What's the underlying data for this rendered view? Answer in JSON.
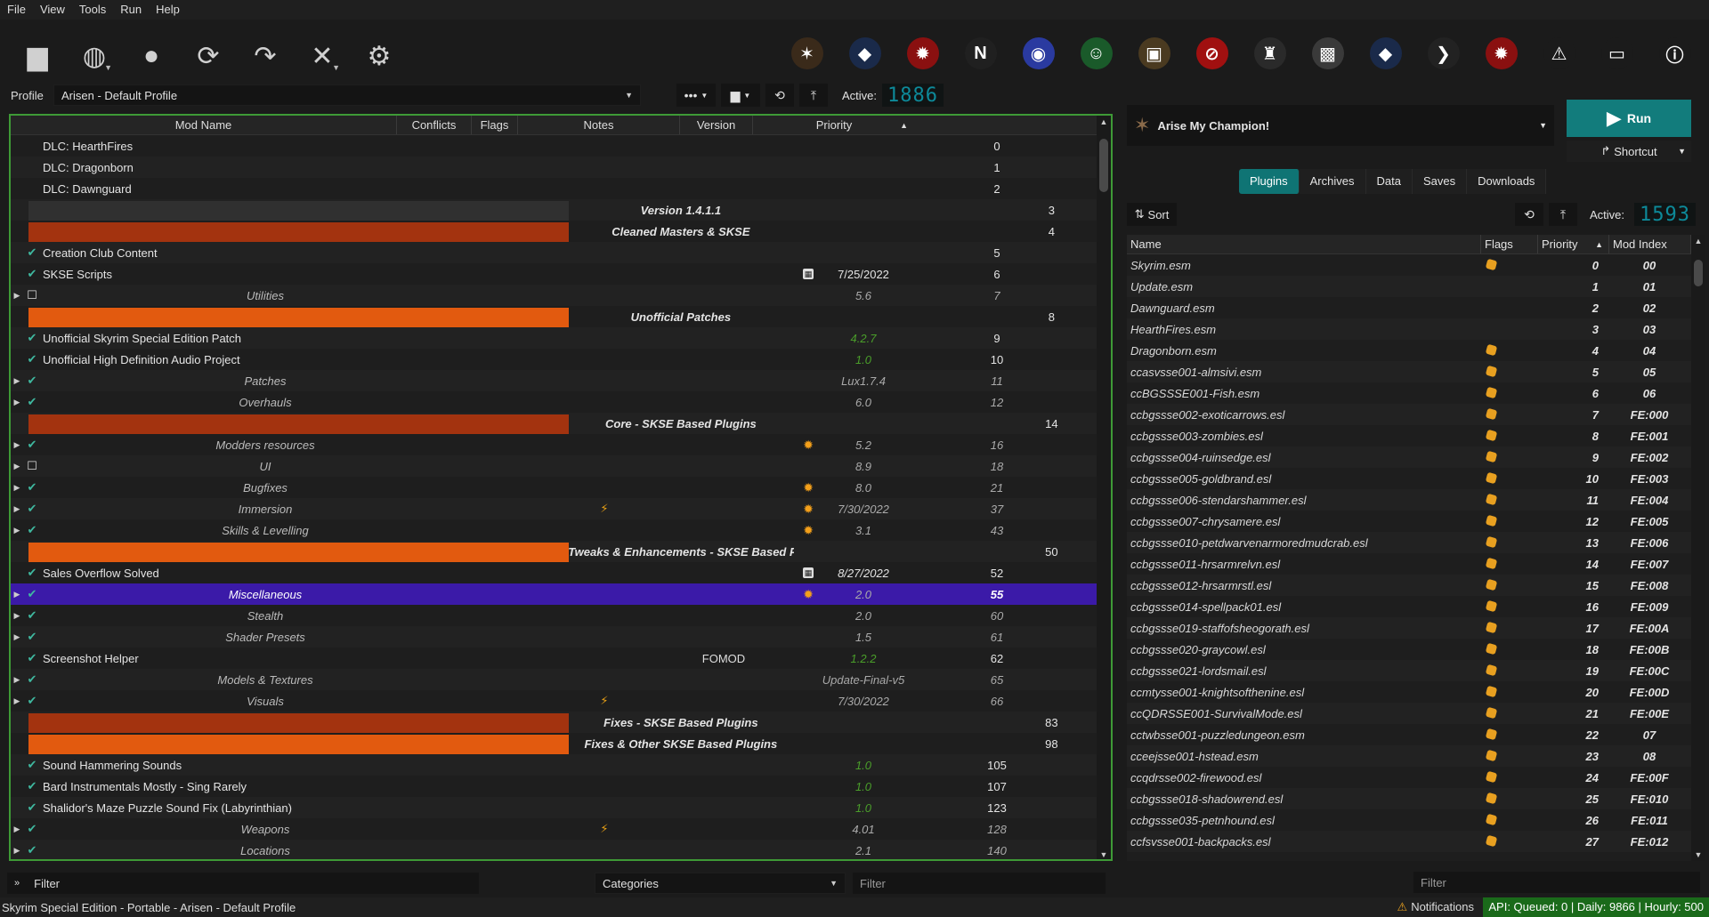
{
  "menu": [
    "File",
    "View",
    "Tools",
    "Run",
    "Help"
  ],
  "toolbar": {
    "left": [
      {
        "icon": "folder-icon",
        "glyph": "▆"
      },
      {
        "icon": "globe-icon",
        "glyph": "◍",
        "caret": true
      },
      {
        "icon": "profile-icon",
        "glyph": "●"
      },
      {
        "icon": "refresh-icon",
        "glyph": "⟳"
      },
      {
        "icon": "redo-icon",
        "glyph": "↷"
      },
      {
        "icon": "tools-icon",
        "glyph": "✕",
        "caret": true
      },
      {
        "icon": "settings-icon",
        "glyph": "⚙"
      }
    ],
    "executables": [
      {
        "icon": "skyrim-exe-icon",
        "color": "#3a2a1a",
        "glyph": "✶"
      },
      {
        "icon": "crystal-exe-icon",
        "color": "#1a2a4a",
        "glyph": "◆"
      },
      {
        "icon": "red-mask-exe-icon",
        "color": "#8a1010",
        "glyph": "✹"
      },
      {
        "icon": "nemesis-exe-icon",
        "color": "#202020",
        "glyph": "N"
      },
      {
        "icon": "blue-orb-exe-icon",
        "color": "#2a3aa0",
        "glyph": "◉"
      },
      {
        "icon": "green-face-exe-icon",
        "color": "#1a5a2a",
        "glyph": "☺"
      },
      {
        "icon": "archive-exe-icon",
        "color": "#4a3a20",
        "glyph": "▣"
      },
      {
        "icon": "red-slash-exe-icon",
        "color": "#a01010",
        "glyph": "⊘"
      },
      {
        "icon": "castle-exe-icon",
        "color": "#2a2a2a",
        "glyph": "♜"
      },
      {
        "icon": "cube-exe-icon",
        "color": "#3a3a3a",
        "glyph": "▩"
      },
      {
        "icon": "crystal2-exe-icon",
        "color": "#1a2a4a",
        "glyph": "◆"
      },
      {
        "icon": "claw-exe-icon",
        "color": "#222",
        "glyph": "❯"
      },
      {
        "icon": "red-skull-exe-icon",
        "color": "#8a1010",
        "glyph": "✹"
      },
      {
        "icon": "warning-icon",
        "color": "#1b1b1b",
        "glyph": "⚠"
      },
      {
        "icon": "tag-icon",
        "color": "#1b1b1b",
        "glyph": "▭"
      },
      {
        "icon": "info-icon",
        "color": "#1b1b1b",
        "glyph": "ⓘ"
      }
    ]
  },
  "profile": {
    "label": "Profile",
    "value": "Arisen - Default Profile",
    "active_label": "Active:",
    "active_count": "1886"
  },
  "modlist": {
    "columns": [
      "Mod Name",
      "Conflicts",
      "Flags",
      "Notes",
      "Version",
      "Priority"
    ],
    "rows": [
      {
        "t": "mod",
        "chk": "",
        "name": "DLC: HearthFires",
        "pri": "0"
      },
      {
        "t": "mod",
        "chk": "",
        "name": "DLC: Dragonborn",
        "pri": "1"
      },
      {
        "t": "mod",
        "chk": "",
        "name": "DLC: Dawnguard",
        "pri": "2"
      },
      {
        "t": "sep",
        "style": "sepgray",
        "name": "Version 1.4.1.1",
        "pri": "3"
      },
      {
        "t": "sep",
        "style": "sepred",
        "name": "Cleaned Masters & SKSE",
        "pri": "4"
      },
      {
        "t": "mod",
        "chk": "✔",
        "name": "Creation Club Content",
        "pri": "5"
      },
      {
        "t": "mod",
        "chk": "✔",
        "name": "SKSE Scripts",
        "noteicon": true,
        "ver": "7/25/2022",
        "pri": "6"
      },
      {
        "t": "grp",
        "exp": "▶",
        "chk": "☐",
        "name": "Utilities",
        "ver": "5.6",
        "pri": "7"
      },
      {
        "t": "sep",
        "style": "sepora",
        "name": "Unofficial Patches",
        "pri": "8"
      },
      {
        "t": "mod",
        "chk": "✔",
        "name": "Unofficial Skyrim Special Edition Patch",
        "ver": "4.2.7",
        "vgreen": true,
        "pri": "9"
      },
      {
        "t": "mod",
        "chk": "✔",
        "name": "Unofficial High Definition Audio Project",
        "ver": "1.0",
        "vgreen": true,
        "pri": "10"
      },
      {
        "t": "grp",
        "exp": "▶",
        "chk": "✔",
        "name": "Patches",
        "ver": "Lux1.7.4",
        "pri": "11"
      },
      {
        "t": "grp",
        "exp": "▶",
        "chk": "✔",
        "name": "Overhauls",
        "ver": "6.0",
        "pri": "12"
      },
      {
        "t": "sep",
        "style": "sepred",
        "name": "Core - SKSE Based Plugins",
        "pri": "14"
      },
      {
        "t": "grp",
        "exp": "▶",
        "chk": "✔",
        "name": "Modders resources",
        "star": true,
        "ver": "5.2",
        "pri": "16"
      },
      {
        "t": "grp",
        "exp": "▶",
        "chk": "☐",
        "name": "UI",
        "ver": "8.9",
        "pri": "18"
      },
      {
        "t": "grp",
        "exp": "▶",
        "chk": "✔",
        "name": "Bugfixes",
        "star": true,
        "ver": "8.0",
        "pri": "21"
      },
      {
        "t": "grp",
        "exp": "▶",
        "chk": "✔",
        "name": "Immersion",
        "bolt": true,
        "star": true,
        "ver": "7/30/2022",
        "pri": "37"
      },
      {
        "t": "grp",
        "exp": "▶",
        "chk": "✔",
        "name": "Skills & Levelling",
        "star": true,
        "ver": "3.1",
        "pri": "43"
      },
      {
        "t": "sep",
        "style": "sepora",
        "name": "Tweaks & Enhancements - SKSE Based Plugins",
        "pri": "50"
      },
      {
        "t": "mod",
        "chk": "✔",
        "name": "Sales Overflow Solved",
        "noteicon": true,
        "ver": "8/27/2022",
        "vital": true,
        "pri": "52"
      },
      {
        "t": "grp",
        "exp": "▶",
        "chk": "✔",
        "name": "Miscellaneous",
        "star": true,
        "ver": "2.0",
        "pri": "55",
        "sel": true
      },
      {
        "t": "grp",
        "exp": "▶",
        "chk": "✔",
        "name": "Stealth",
        "ver": "2.0",
        "pri": "60"
      },
      {
        "t": "grp",
        "exp": "▶",
        "chk": "✔",
        "name": "Shader Presets",
        "ver": "1.5",
        "pri": "61"
      },
      {
        "t": "mod",
        "chk": "✔",
        "name": "Screenshot Helper",
        "notes": "FOMOD",
        "ver": "1.2.2",
        "vgreen": true,
        "pri": "62"
      },
      {
        "t": "grp",
        "exp": "▶",
        "chk": "✔",
        "name": "Models & Textures",
        "ver": "Update-Final-v5",
        "pri": "65"
      },
      {
        "t": "grp",
        "exp": "▶",
        "chk": "✔",
        "name": "Visuals",
        "bolt": true,
        "ver": "7/30/2022",
        "pri": "66"
      },
      {
        "t": "sep",
        "style": "sepred",
        "name": "Fixes - SKSE Based Plugins",
        "pri": "83"
      },
      {
        "t": "sep",
        "style": "sepora",
        "name": "Fixes & Other SKSE Based Plugins",
        "pri": "98"
      },
      {
        "t": "mod",
        "chk": "✔",
        "name": "Sound Hammering Sounds",
        "ver": "1.0",
        "vgreen": true,
        "pri": "105"
      },
      {
        "t": "mod",
        "chk": "✔",
        "name": "Bard Instrumentals Mostly - Sing Rarely",
        "ver": "1.0",
        "vgreen": true,
        "pri": "107"
      },
      {
        "t": "mod",
        "chk": "✔",
        "name": "Shalidor's Maze Puzzle Sound Fix (Labyrinthian)",
        "ver": "1.0",
        "vgreen": true,
        "pri": "123"
      },
      {
        "t": "grp",
        "exp": "▶",
        "chk": "✔",
        "name": "Weapons",
        "bolt": true,
        "ver": "4.01",
        "pri": "128"
      },
      {
        "t": "grp",
        "exp": "▶",
        "chk": "✔",
        "name": "Locations",
        "ver": "2.1",
        "pri": "140"
      }
    ]
  },
  "bottom_left": {
    "filter_label": "Filter",
    "categories": "Categories",
    "filter_placeholder": "Filter"
  },
  "exec": {
    "name": "Arise My Champion!",
    "run": "Run",
    "shortcut": "Shortcut"
  },
  "tabs": [
    "Plugins",
    "Archives",
    "Data",
    "Saves",
    "Downloads"
  ],
  "plugins": {
    "sort": "Sort",
    "active_label": "Active:",
    "active_count": "1593",
    "columns": [
      "Name",
      "Flags",
      "Priority",
      "Mod Index"
    ],
    "rows": [
      {
        "n": "Skyrim.esm",
        "f": true,
        "p": "0",
        "i": "00"
      },
      {
        "n": "Update.esm",
        "f": false,
        "p": "1",
        "i": "01"
      },
      {
        "n": "Dawnguard.esm",
        "f": false,
        "p": "2",
        "i": "02"
      },
      {
        "n": "HearthFires.esm",
        "f": false,
        "p": "3",
        "i": "03"
      },
      {
        "n": "Dragonborn.esm",
        "f": true,
        "p": "4",
        "i": "04"
      },
      {
        "n": "ccasvsse001-almsivi.esm",
        "f": true,
        "p": "5",
        "i": "05"
      },
      {
        "n": "ccBGSSSE001-Fish.esm",
        "f": true,
        "p": "6",
        "i": "06"
      },
      {
        "n": "ccbgssse002-exoticarrows.esl",
        "f": true,
        "p": "7",
        "i": "FE:000"
      },
      {
        "n": "ccbgssse003-zombies.esl",
        "f": true,
        "p": "8",
        "i": "FE:001"
      },
      {
        "n": "ccbgssse004-ruinsedge.esl",
        "f": true,
        "p": "9",
        "i": "FE:002"
      },
      {
        "n": "ccbgssse005-goldbrand.esl",
        "f": true,
        "p": "10",
        "i": "FE:003"
      },
      {
        "n": "ccbgssse006-stendarshammer.esl",
        "f": true,
        "p": "11",
        "i": "FE:004"
      },
      {
        "n": "ccbgssse007-chrysamere.esl",
        "f": true,
        "p": "12",
        "i": "FE:005"
      },
      {
        "n": "ccbgssse010-petdwarvenarmoredmudcrab.esl",
        "f": true,
        "p": "13",
        "i": "FE:006"
      },
      {
        "n": "ccbgssse011-hrsarmrelvn.esl",
        "f": true,
        "p": "14",
        "i": "FE:007"
      },
      {
        "n": "ccbgssse012-hrsarmrstl.esl",
        "f": true,
        "p": "15",
        "i": "FE:008"
      },
      {
        "n": "ccbgssse014-spellpack01.esl",
        "f": true,
        "p": "16",
        "i": "FE:009"
      },
      {
        "n": "ccbgssse019-staffofsheogorath.esl",
        "f": true,
        "p": "17",
        "i": "FE:00A"
      },
      {
        "n": "ccbgssse020-graycowl.esl",
        "f": true,
        "p": "18",
        "i": "FE:00B"
      },
      {
        "n": "ccbgssse021-lordsmail.esl",
        "f": true,
        "p": "19",
        "i": "FE:00C"
      },
      {
        "n": "ccmtysse001-knightsofthenine.esl",
        "f": true,
        "p": "20",
        "i": "FE:00D"
      },
      {
        "n": "ccQDRSSE001-SurvivalMode.esl",
        "f": true,
        "p": "21",
        "i": "FE:00E"
      },
      {
        "n": "cctwbsse001-puzzledungeon.esm",
        "f": true,
        "p": "22",
        "i": "07"
      },
      {
        "n": "cceejsse001-hstead.esm",
        "f": true,
        "p": "23",
        "i": "08"
      },
      {
        "n": "ccqdrsse002-firewood.esl",
        "f": true,
        "p": "24",
        "i": "FE:00F"
      },
      {
        "n": "ccbgssse018-shadowrend.esl",
        "f": true,
        "p": "25",
        "i": "FE:010"
      },
      {
        "n": "ccbgssse035-petnhound.esl",
        "f": true,
        "p": "26",
        "i": "FE:011"
      },
      {
        "n": "ccfsvsse001-backpacks.esl",
        "f": true,
        "p": "27",
        "i": "FE:012"
      }
    ]
  },
  "bottom_right": {
    "filter_placeholder": "Filter"
  },
  "status": {
    "title": "Skyrim Special Edition - Portable - Arisen - Default Profile",
    "notifications": "Notifications",
    "api": "API: Queued: 0 | Daily: 9866 | Hourly: 500"
  },
  "colors": {
    "accent": "#127c7c",
    "sep_red": "#a3330f",
    "sep_orange": "#e25a0f",
    "selection": "#3b1aa8",
    "modlist_border": "#3e9a36"
  }
}
